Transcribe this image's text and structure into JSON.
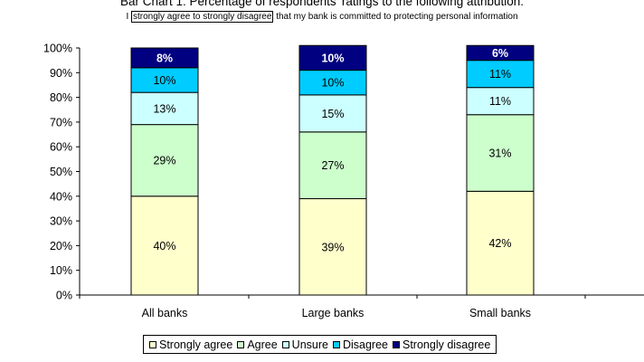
{
  "header": {
    "title": "Bar Chart 1: Percentage of respondents' ratings to the following attribution:",
    "subtitle_prefix": "I",
    "subtitle_boxed": "strongly agree to strongly disagree",
    "subtitle_suffix": "that my bank is committed to protecting personal information"
  },
  "chart_data": {
    "type": "bar",
    "stacked": true,
    "title": "Bar Chart 1: Percentage of respondents' ratings to the following attribution:",
    "categories": [
      "All banks",
      "Large banks",
      "Small banks"
    ],
    "ylim": [
      0,
      100
    ],
    "y_ticks": [
      "0%",
      "10%",
      "20%",
      "30%",
      "40%",
      "50%",
      "60%",
      "70%",
      "80%",
      "90%",
      "100%"
    ],
    "grid": false,
    "legend_position": "bottom",
    "series": [
      {
        "name": "Strongly agree",
        "color": "#FFFFCC",
        "label_color": "#000000",
        "values": [
          40,
          39,
          42
        ],
        "labels": [
          "40%",
          "39%",
          "42%"
        ]
      },
      {
        "name": "Agree",
        "color": "#CCFFCC",
        "label_color": "#000000",
        "values": [
          29,
          27,
          31
        ],
        "labels": [
          "29%",
          "27%",
          "31%"
        ]
      },
      {
        "name": "Unsure",
        "color": "#CCFFFF",
        "label_color": "#000000",
        "values": [
          13,
          15,
          11
        ],
        "labels": [
          "13%",
          "15%",
          "11%"
        ]
      },
      {
        "name": "Disagree",
        "color": "#00CCFF",
        "label_color": "#000000",
        "values": [
          10,
          10,
          11
        ],
        "labels": [
          "10%",
          "10%",
          "11%"
        ]
      },
      {
        "name": "Strongly disagree",
        "color": "#000080",
        "label_color": "#FFFFFF",
        "values": [
          8,
          10,
          6
        ],
        "labels": [
          "8%",
          "10%",
          "6%"
        ]
      }
    ]
  }
}
